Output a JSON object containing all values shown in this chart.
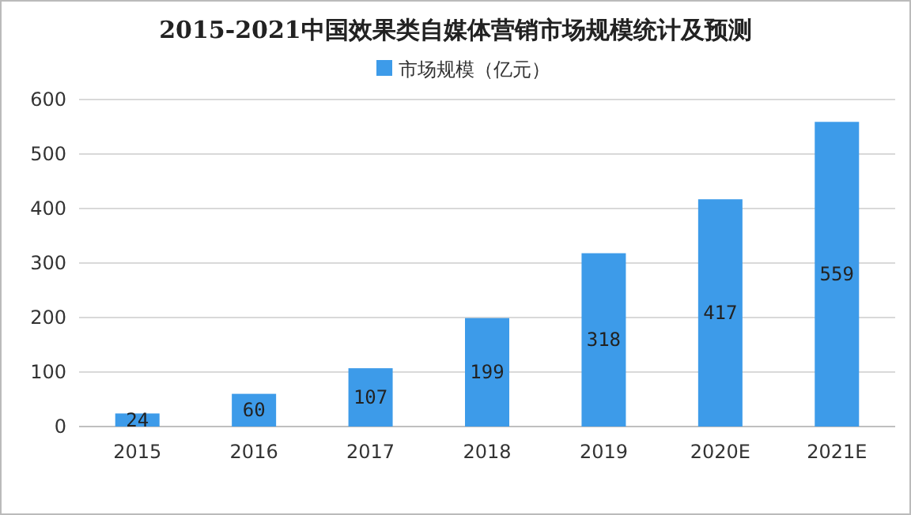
{
  "chart_data": {
    "type": "bar",
    "title": "2015-2021中国效果类自媒体营销市场规模统计及预测",
    "categories": [
      "2015",
      "2016",
      "2017",
      "2018",
      "2019",
      "2020E",
      "2021E"
    ],
    "series": [
      {
        "name": "市场规模（亿元）",
        "color": "#3d9be9",
        "values": [
          24,
          60,
          107,
          199,
          318,
          417,
          559
        ]
      }
    ],
    "ylim": [
      0,
      600
    ],
    "yticks": [
      0,
      100,
      200,
      300,
      400,
      500,
      600
    ],
    "grid": "y",
    "legend": "top",
    "data_labels": true
  }
}
